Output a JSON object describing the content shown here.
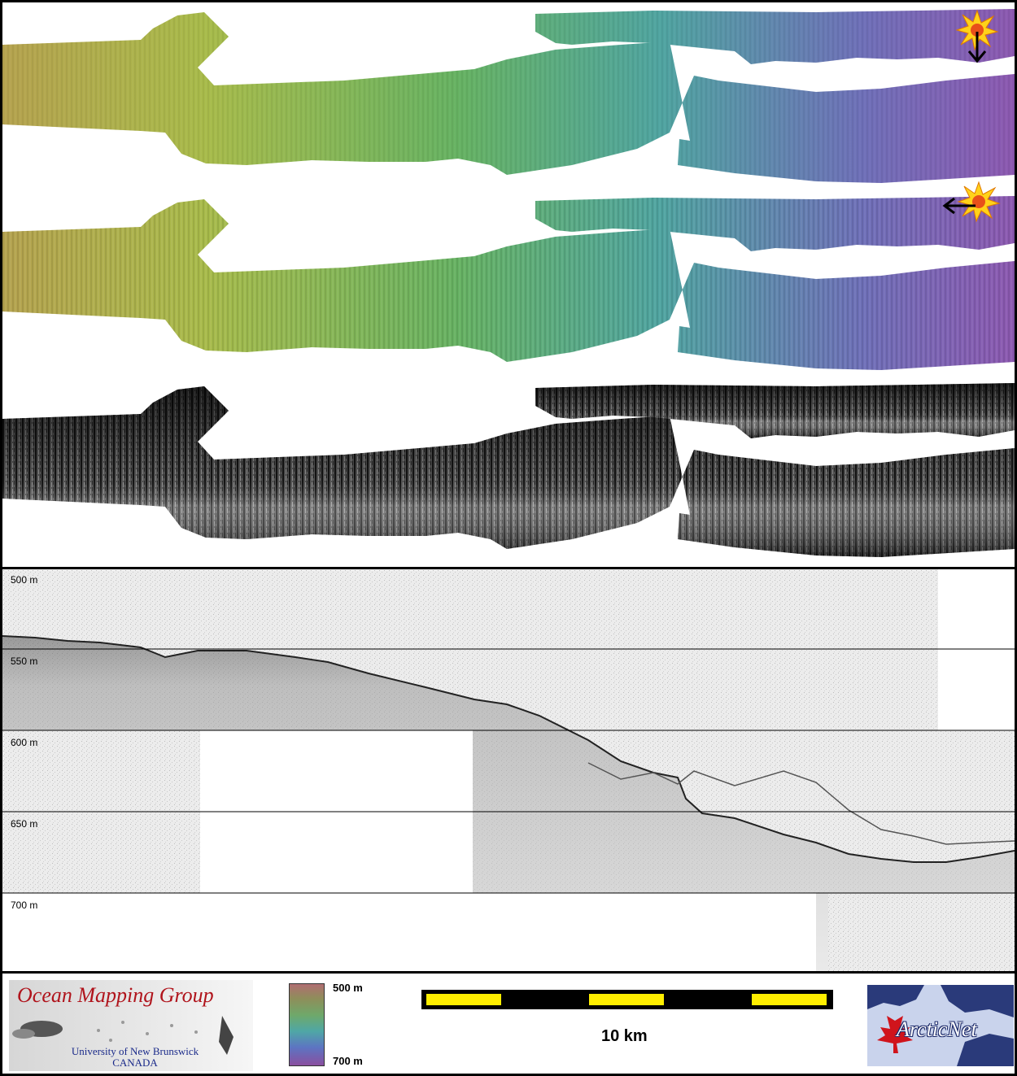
{
  "profile": {
    "depth_labels": [
      "500 m",
      "550 m",
      "600 m",
      "650 m",
      "700 m"
    ]
  },
  "footer": {
    "omg_title": "Ocean Mapping Group",
    "omg_university": "University of New Brunswick",
    "omg_country": "CANADA",
    "colorbar_top": "500 m",
    "colorbar_bottom": "700 m",
    "scale_label": "10 km",
    "arctic_logo": "ArcticNet"
  },
  "colors": {
    "frame": "#000000",
    "scale_yellow": "#ffee00",
    "omg_red": "#b0141c",
    "omg_blue": "#1a2a8a",
    "arctic_blue": "#1d2a6a"
  },
  "icons": [
    "sun-icon",
    "arrow-down-icon",
    "arrow-left-icon",
    "maple-leaf-icon"
  ]
}
